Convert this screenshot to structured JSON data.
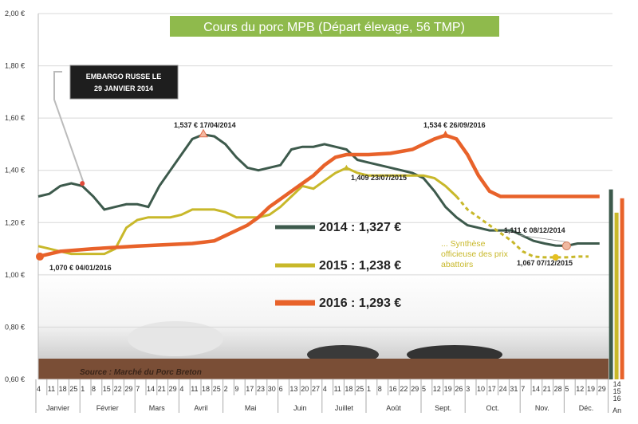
{
  "chart_data": {
    "type": "line",
    "title": "Cours du porc MPB (Départ élevage, 56 TMP)",
    "ylim": [
      0.6,
      2.0
    ],
    "yticks": [
      "0,60 €",
      "0,80 €",
      "1,00 €",
      "1,20 €",
      "1,40 €",
      "1,60 €",
      "1,80 €",
      "2,00 €"
    ],
    "grid": true,
    "source": "Source : Marché du Porc Breton",
    "week_labels": [
      "4",
      "11",
      "18",
      "25",
      "1",
      "8",
      "15",
      "22",
      "29",
      "7",
      "14",
      "21",
      "29",
      "4",
      "11",
      "18",
      "25",
      "2",
      "9",
      "17",
      "23",
      "30",
      "6",
      "13",
      "20",
      "27",
      "4",
      "11",
      "18",
      "25",
      "1",
      "8",
      "16",
      "22",
      "29",
      "5",
      "12",
      "19",
      "26",
      "3",
      "10",
      "17",
      "24",
      "31",
      "7",
      "14",
      "21",
      "28",
      "5",
      "12",
      "19",
      "29"
    ],
    "months": [
      {
        "name": "Janvier",
        "weeks": 4
      },
      {
        "name": "Février",
        "weeks": 5
      },
      {
        "name": "Mars",
        "weeks": 4
      },
      {
        "name": "Avril",
        "weeks": 4
      },
      {
        "name": "Mai",
        "weeks": 5
      },
      {
        "name": "Juin",
        "weeks": 4
      },
      {
        "name": "Juillet",
        "weeks": 4
      },
      {
        "name": "Août",
        "weeks": 5
      },
      {
        "name": "Sept.",
        "weeks": 4
      },
      {
        "name": "Oct.",
        "weeks": 5
      },
      {
        "name": "Nov.",
        "weeks": 4
      },
      {
        "name": "Déc.",
        "weeks": 4
      }
    ],
    "annual": {
      "label": "An",
      "years": [
        "14",
        "15",
        "16"
      ]
    },
    "series": [
      {
        "name": "2014 : 1,327 €",
        "color": "#3d5a4c",
        "annual": 1.327,
        "points": [
          [
            1,
            1.3
          ],
          [
            2,
            1.31
          ],
          [
            3,
            1.34
          ],
          [
            4,
            1.35
          ],
          [
            5,
            1.34
          ],
          [
            6,
            1.3
          ],
          [
            7,
            1.25
          ],
          [
            8,
            1.26
          ],
          [
            9,
            1.27
          ],
          [
            10,
            1.27
          ],
          [
            11,
            1.26
          ],
          [
            12,
            1.34
          ],
          [
            13,
            1.4
          ],
          [
            14,
            1.46
          ],
          [
            15,
            1.52
          ],
          [
            16,
            1.537
          ],
          [
            17,
            1.53
          ],
          [
            18,
            1.5
          ],
          [
            19,
            1.45
          ],
          [
            20,
            1.41
          ],
          [
            21,
            1.4
          ],
          [
            22,
            1.41
          ],
          [
            23,
            1.42
          ],
          [
            24,
            1.48
          ],
          [
            25,
            1.49
          ],
          [
            26,
            1.49
          ],
          [
            27,
            1.5
          ],
          [
            28,
            1.49
          ],
          [
            29,
            1.48
          ],
          [
            30,
            1.44
          ],
          [
            31,
            1.43
          ],
          [
            32,
            1.42
          ],
          [
            33,
            1.41
          ],
          [
            34,
            1.4
          ],
          [
            35,
            1.39
          ],
          [
            36,
            1.37
          ],
          [
            37,
            1.32
          ],
          [
            38,
            1.26
          ],
          [
            39,
            1.22
          ],
          [
            40,
            1.19
          ],
          [
            41,
            1.18
          ],
          [
            42,
            1.17
          ],
          [
            43,
            1.17
          ],
          [
            44,
            1.17
          ],
          [
            45,
            1.15
          ],
          [
            46,
            1.13
          ],
          [
            47,
            1.12
          ],
          [
            48,
            1.112
          ],
          [
            49,
            1.111
          ],
          [
            50,
            1.12
          ],
          [
            51,
            1.12
          ],
          [
            52,
            1.12
          ]
        ]
      },
      {
        "name": "2015 : 1,238 €",
        "color": "#c8b82a",
        "annual": 1.238,
        "dashed_from_week": 39,
        "points": [
          [
            1,
            1.11
          ],
          [
            2,
            1.1
          ],
          [
            3,
            1.09
          ],
          [
            4,
            1.08
          ],
          [
            5,
            1.08
          ],
          [
            6,
            1.08
          ],
          [
            7,
            1.08
          ],
          [
            8,
            1.1
          ],
          [
            9,
            1.18
          ],
          [
            10,
            1.21
          ],
          [
            11,
            1.22
          ],
          [
            12,
            1.22
          ],
          [
            13,
            1.22
          ],
          [
            14,
            1.23
          ],
          [
            15,
            1.25
          ],
          [
            16,
            1.25
          ],
          [
            17,
            1.25
          ],
          [
            18,
            1.24
          ],
          [
            19,
            1.22
          ],
          [
            20,
            1.22
          ],
          [
            21,
            1.22
          ],
          [
            22,
            1.23
          ],
          [
            23,
            1.26
          ],
          [
            24,
            1.3
          ],
          [
            25,
            1.34
          ],
          [
            26,
            1.33
          ],
          [
            27,
            1.36
          ],
          [
            28,
            1.39
          ],
          [
            29,
            1.409
          ],
          [
            30,
            1.39
          ],
          [
            31,
            1.38
          ],
          [
            32,
            1.38
          ],
          [
            33,
            1.38
          ],
          [
            34,
            1.38
          ],
          [
            35,
            1.38
          ],
          [
            36,
            1.38
          ],
          [
            37,
            1.37
          ],
          [
            38,
            1.34
          ],
          [
            39,
            1.3
          ],
          [
            40,
            1.25
          ],
          [
            41,
            1.22
          ],
          [
            42,
            1.19
          ],
          [
            43,
            1.16
          ],
          [
            44,
            1.13
          ],
          [
            45,
            1.09
          ],
          [
            46,
            1.07
          ],
          [
            47,
            1.067
          ],
          [
            48,
            1.067
          ],
          [
            49,
            1.067
          ],
          [
            50,
            1.07
          ],
          [
            51,
            1.07
          ]
        ]
      },
      {
        "name": "2016 : 1,293 €",
        "color": "#e8622a",
        "annual": 1.293,
        "points": [
          [
            1,
            1.07
          ],
          [
            3,
            1.09
          ],
          [
            6,
            1.1
          ],
          [
            10,
            1.11
          ],
          [
            15,
            1.12
          ],
          [
            17,
            1.13
          ],
          [
            18,
            1.15
          ],
          [
            19,
            1.17
          ],
          [
            20,
            1.19
          ],
          [
            21,
            1.22
          ],
          [
            22,
            1.26
          ],
          [
            23,
            1.29
          ],
          [
            24,
            1.32
          ],
          [
            25,
            1.35
          ],
          [
            26,
            1.38
          ],
          [
            27,
            1.42
          ],
          [
            28,
            1.45
          ],
          [
            29,
            1.46
          ],
          [
            31,
            1.46
          ],
          [
            33,
            1.465
          ],
          [
            35,
            1.48
          ],
          [
            36,
            1.5
          ],
          [
            37,
            1.52
          ],
          [
            38,
            1.534
          ],
          [
            39,
            1.52
          ],
          [
            40,
            1.46
          ],
          [
            41,
            1.38
          ],
          [
            42,
            1.32
          ],
          [
            43,
            1.3
          ],
          [
            52,
            1.3
          ]
        ]
      }
    ],
    "annotations": [
      {
        "text": "EMBARGO RUSSE LE",
        "text2": "29 JANVIER 2014"
      },
      {
        "text": "1,537 € 17/04/2014",
        "week": 16,
        "value": 1.537
      },
      {
        "text": "1,534 € 26/09/2016",
        "week": 38,
        "value": 1.534
      },
      {
        "text": "1,409 23/07/2015",
        "week": 29,
        "value": 1.409
      },
      {
        "text": "1,070 € 04/01/2016",
        "week": 1,
        "value": 1.07
      },
      {
        "text": "1,111 € 08/12/2014",
        "week": 49,
        "value": 1.111
      },
      {
        "text": "1,067 07/12/2015",
        "week": 49,
        "value": 1.067
      }
    ],
    "note": [
      "... Synthèse",
      "officieuse des prix",
      "abattoirs"
    ]
  }
}
